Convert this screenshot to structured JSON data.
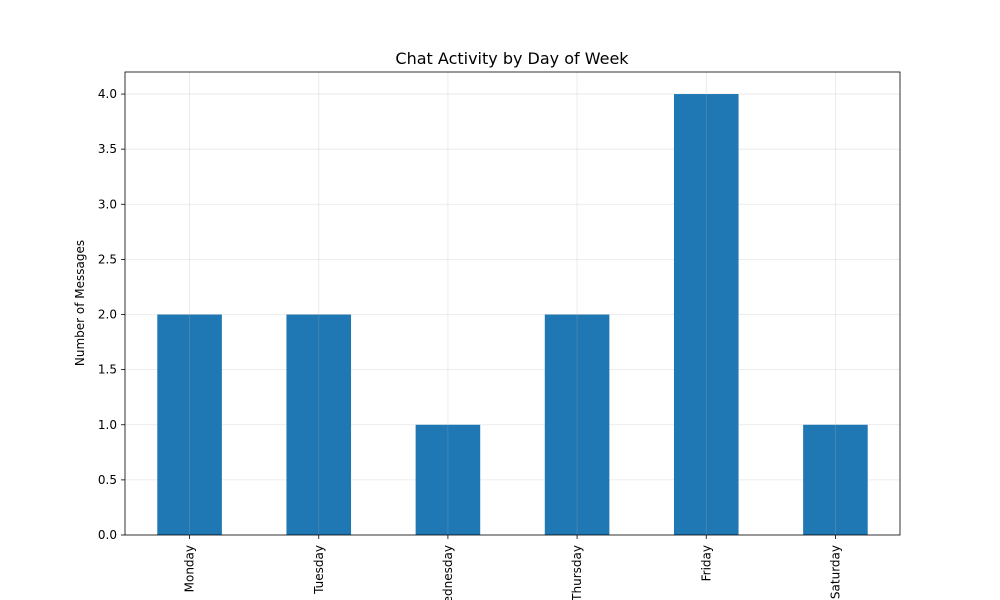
{
  "chart_data": {
    "type": "bar",
    "title": "Chat Activity by Day of Week",
    "xlabel": "",
    "ylabel": "Number of Messages",
    "categories": [
      "Monday",
      "Tuesday",
      "Wednesday",
      "Thursday",
      "Friday",
      "Saturday"
    ],
    "values": [
      2,
      2,
      1,
      2,
      4,
      1
    ],
    "ylim": [
      0,
      4.2
    ],
    "yticks": [
      "0.0",
      "0.5",
      "1.0",
      "1.5",
      "2.0",
      "2.5",
      "3.0",
      "3.5",
      "4.0"
    ],
    "grid": true,
    "legend": "none",
    "bar_color": "#1f77b4",
    "xtick_rotation": "vertical"
  }
}
